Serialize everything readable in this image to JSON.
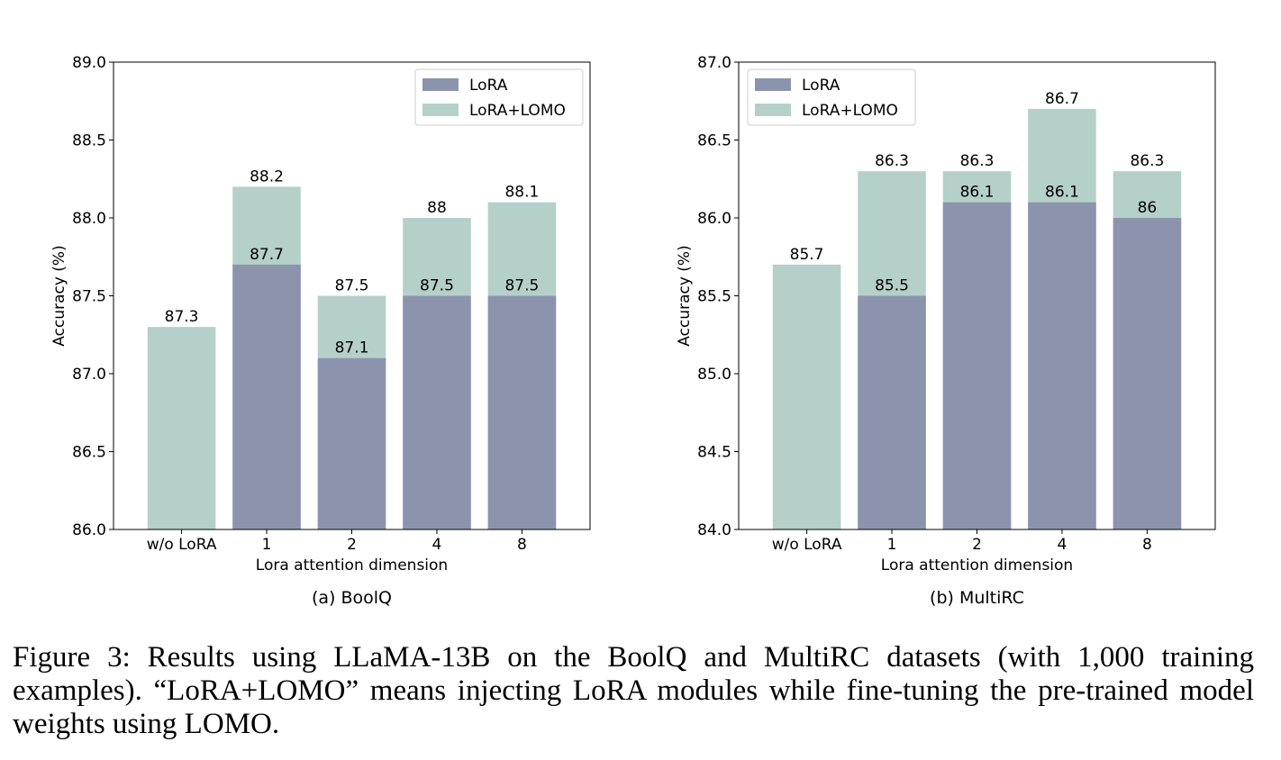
{
  "chart_data": [
    {
      "type": "bar",
      "subtitle": "(a) BoolQ",
      "xlabel": "Lora attention dimension",
      "ylabel": "Accuracy (%)",
      "ylim": [
        86.0,
        89.0
      ],
      "yticks": [
        "86.0",
        "86.5",
        "87.0",
        "87.5",
        "88.0",
        "88.5",
        "89.0"
      ],
      "categories": [
        "w/o LoRA",
        "1",
        "2",
        "4",
        "8"
      ],
      "series": [
        {
          "name": "LoRA",
          "values": [
            null,
            87.7,
            87.1,
            87.5,
            87.5
          ],
          "labels": [
            "",
            "87.7",
            "87.1",
            "87.5",
            "87.5"
          ]
        },
        {
          "name": "LoRA+LOMO",
          "values": [
            87.3,
            88.2,
            87.5,
            88.0,
            88.1
          ],
          "labels": [
            "87.3",
            "88.2",
            "87.5",
            "88",
            "88.1"
          ]
        }
      ],
      "legend": "top-right",
      "grid": false
    },
    {
      "type": "bar",
      "subtitle": "(b) MultiRC",
      "xlabel": "Lora attention dimension",
      "ylabel": "Accuracy (%)",
      "ylim": [
        84.0,
        87.0
      ],
      "yticks": [
        "84.0",
        "84.5",
        "85.0",
        "85.5",
        "86.0",
        "86.5",
        "87.0"
      ],
      "categories": [
        "w/o LoRA",
        "1",
        "2",
        "4",
        "8"
      ],
      "series": [
        {
          "name": "LoRA",
          "values": [
            null,
            85.5,
            86.1,
            86.1,
            86.0
          ],
          "labels": [
            "",
            "85.5",
            "86.1",
            "86.1",
            "86"
          ]
        },
        {
          "name": "LoRA+LOMO",
          "values": [
            85.7,
            86.3,
            86.3,
            86.7,
            86.3
          ],
          "labels": [
            "85.7",
            "86.3",
            "86.3",
            "86.7",
            "86.3"
          ]
        }
      ],
      "legend": "top-left",
      "grid": false
    }
  ],
  "colors": {
    "lora": "#8c94ad",
    "lora_lomo": "#b5d0c8"
  },
  "caption": "Figure 3: Results using LLaMA-13B on the BoolQ and MultiRC datasets (with 1,000 training examples). “LoRA+LOMO” means injecting LoRA modules while fine-tuning the pre-trained model weights using LOMO."
}
